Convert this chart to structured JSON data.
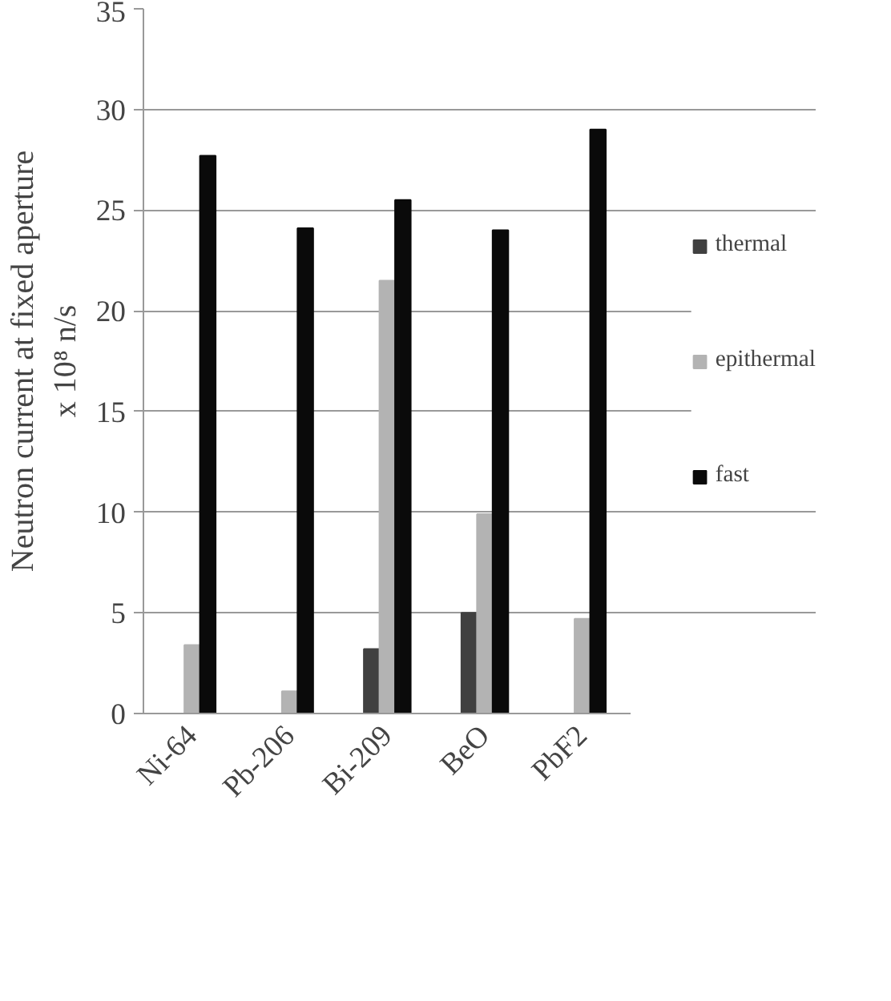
{
  "chart_data": {
    "type": "bar",
    "ylabel": "Neutron current at fixed aperture\nx 10⁸ n/s",
    "categories": [
      "Ni-64",
      "Pb-206",
      "Bi-209",
      "BeO",
      "PbF2"
    ],
    "series": [
      {
        "name": "thermal",
        "color": "#404040",
        "values": [
          null,
          null,
          3.2,
          5.0,
          null
        ]
      },
      {
        "name": "epithermal",
        "color": "#b3b3b3",
        "values": [
          3.4,
          1.1,
          21.5,
          9.9,
          4.7
        ]
      },
      {
        "name": "fast",
        "color": "#0a0a0a",
        "values": [
          27.7,
          24.1,
          25.5,
          24.0,
          29.0
        ]
      }
    ],
    "ylim": [
      0,
      35
    ],
    "yticks": [
      0,
      5,
      10,
      15,
      20,
      25,
      30,
      35
    ],
    "grid": "y",
    "legend": "right"
  }
}
